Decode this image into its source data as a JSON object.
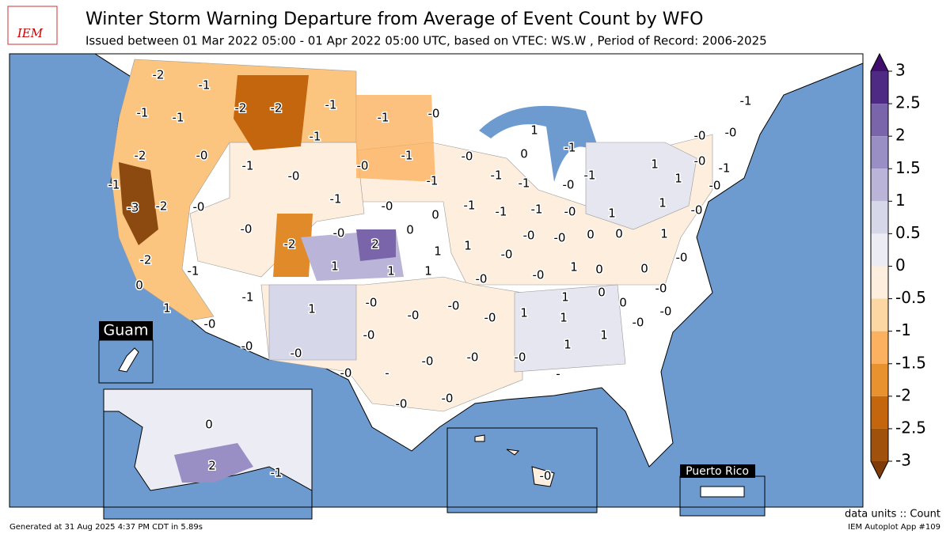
{
  "header": {
    "title": "Winter Storm Warning Departure from Average of Event Count by WFO",
    "subtitle": "Issued between 01 Mar 2022 05:00 - 01 Apr 2022 05:00 UTC, based on VTEC: WS.W  , Period of Record: 2006-2025"
  },
  "logo": "IEM",
  "map": {
    "labels": [
      "-2",
      "-1",
      "-1",
      "-1",
      "-2",
      "-2",
      "-1",
      "-1",
      "-0",
      "-1",
      "-2",
      "-0",
      "-1",
      "-0",
      "-0",
      "-1",
      "-0",
      "0",
      "1",
      "-1",
      "-1",
      "-3",
      "-2",
      "-0",
      "-1",
      "-0",
      "-1",
      "0",
      "-1",
      "-1",
      "-1",
      "-1",
      "-1",
      "-0",
      "-1",
      "1",
      "1",
      "1",
      "1",
      "-0",
      "-0",
      "-0",
      "-1",
      "-0",
      "-0",
      "-1",
      "-0",
      "-2",
      "-0",
      "2",
      "0",
      "1",
      "1",
      "1",
      "1",
      "1",
      "-0",
      "-0",
      "-0",
      "-0",
      "0",
      "0",
      "1",
      "-2",
      "-1",
      "0",
      "-0",
      "-0",
      "1",
      "0",
      "0",
      "-0",
      "-0",
      "1",
      "-1",
      "1",
      "-0",
      "-0",
      "-0",
      "-0",
      "1",
      "1",
      "0",
      "0",
      "-0",
      "-0",
      "1",
      "-0",
      "-0",
      "-0",
      "-0",
      "1",
      "1",
      "-0",
      "-0",
      "-0",
      "-0",
      "-",
      "-",
      "-0",
      "-0",
      "0",
      "2",
      "-1",
      "-0"
    ],
    "insets": {
      "guam": "Guam",
      "puerto_rico": "Puerto Rico"
    }
  },
  "colorbar": {
    "ticks": [
      3,
      2.5,
      2,
      1.5,
      1,
      0.5,
      0,
      -0.5,
      -1,
      -1.5,
      -2,
      -2.5,
      -3
    ],
    "colors": [
      "#4f2a85",
      "#7a65ab",
      "#9a8fc4",
      "#b9b4d8",
      "#d7d7ea",
      "#ececf4",
      "#fdeedd",
      "#fdd7a3",
      "#fbb15f",
      "#e8912f",
      "#c4660e",
      "#a0520d"
    ],
    "over_color": "#3f0f6b",
    "under_color": "#7f3b08"
  },
  "footer": {
    "generated": "Generated at 31 Aug 2025 4:37 PM CDT in 5.89s",
    "units": "data units :: Count",
    "app": "IEM Autoplot App #109"
  }
}
